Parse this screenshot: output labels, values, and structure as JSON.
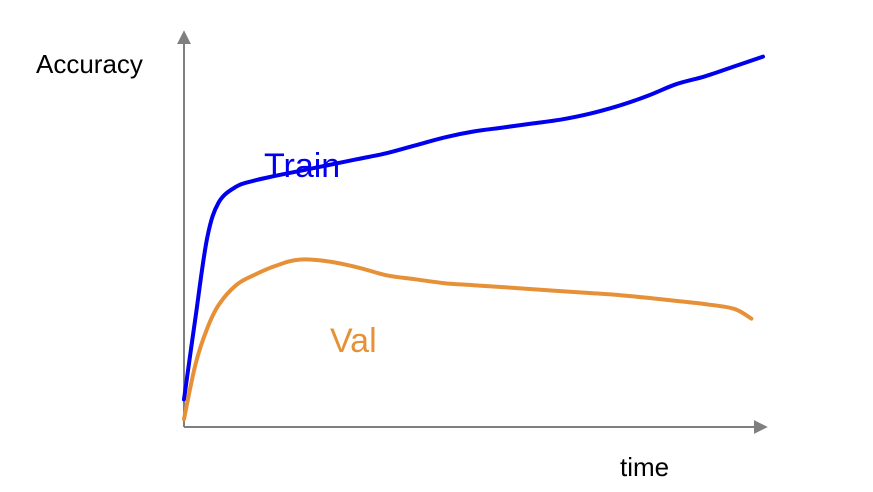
{
  "chart_data": {
    "type": "line",
    "xlabel": "time",
    "ylabel": "Accuracy",
    "xlim": [
      0,
      100
    ],
    "ylim": [
      0,
      100
    ],
    "grid": false,
    "series": [
      {
        "name": "Train",
        "color": "#0000ee",
        "x": [
          0,
          2,
          4,
          6,
          9,
          12,
          16,
          20,
          25,
          30,
          35,
          40,
          45,
          50,
          55,
          60,
          65,
          70,
          75,
          80,
          85,
          90,
          95,
          100
        ],
        "y": [
          7,
          28,
          48,
          57,
          61,
          62.5,
          63.8,
          65,
          66.5,
          68,
          69.5,
          71.5,
          73.5,
          75,
          76,
          77,
          78,
          79.5,
          81.5,
          84,
          87,
          89,
          91.5,
          94
        ]
      },
      {
        "name": "Val",
        "color": "#e69138",
        "x": [
          0,
          2,
          4,
          6,
          9,
          12,
          16,
          20,
          25,
          30,
          35,
          40,
          45,
          50,
          55,
          60,
          65,
          70,
          75,
          80,
          85,
          90,
          95,
          98
        ],
        "y": [
          2,
          16,
          25,
          31,
          36,
          38.5,
          41,
          42.5,
          42,
          40.5,
          38.5,
          37.5,
          36.5,
          36,
          35.5,
          35,
          34.5,
          34,
          33.5,
          32.8,
          32,
          31.2,
          30,
          27.5
        ]
      }
    ]
  }
}
